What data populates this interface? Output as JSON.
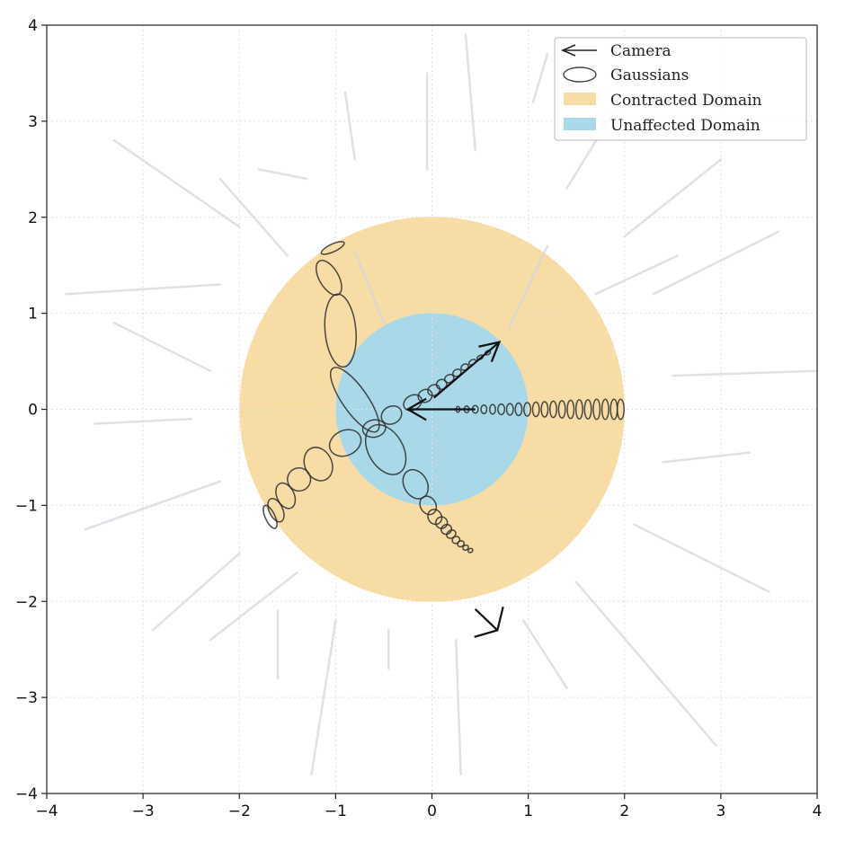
{
  "chart_data": {
    "type": "diagram",
    "xlim": [
      -4,
      4
    ],
    "ylim": [
      -4,
      4
    ],
    "xticks": [
      {
        "value": -4,
        "label": "−4"
      },
      {
        "value": -3,
        "label": "−3"
      },
      {
        "value": -2,
        "label": "−2"
      },
      {
        "value": -1,
        "label": "−1"
      },
      {
        "value": 0,
        "label": "0"
      },
      {
        "value": 1,
        "label": "1"
      },
      {
        "value": 2,
        "label": "2"
      },
      {
        "value": 3,
        "label": "3"
      },
      {
        "value": 4,
        "label": "4"
      }
    ],
    "yticks": [
      {
        "value": -4,
        "label": "−4"
      },
      {
        "value": -3,
        "label": "−3"
      },
      {
        "value": -2,
        "label": "−2"
      },
      {
        "value": -1,
        "label": "−1"
      },
      {
        "value": 0,
        "label": "0"
      },
      {
        "value": 1,
        "label": "1"
      },
      {
        "value": 2,
        "label": "2"
      },
      {
        "value": 3,
        "label": "3"
      },
      {
        "value": 4,
        "label": "4"
      }
    ],
    "grid": true,
    "legend_position": "top-right",
    "legend": [
      {
        "label": "Camera",
        "marker": "camera-arrow"
      },
      {
        "label": "Gaussians",
        "marker": "ellipse"
      },
      {
        "label": "Contracted Domain",
        "marker": "patch",
        "color": "#f8dca6"
      },
      {
        "label": "Unaffected Domain",
        "marker": "patch",
        "color": "#a9d8e8"
      }
    ],
    "regions": [
      {
        "name": "Contracted Domain",
        "shape": "circle",
        "center": [
          0,
          0
        ],
        "radius": 2,
        "color": "#f8dca6"
      },
      {
        "name": "Unaffected Domain",
        "shape": "circle",
        "center": [
          0,
          0
        ],
        "radius": 1,
        "color": "#a9d8e8"
      }
    ],
    "cameras": [
      {
        "tip": [
          -0.25,
          0.0
        ],
        "tail": [
          0.45,
          0.0
        ],
        "wing_angle_deg": 30,
        "wing_length": 0.22
      },
      {
        "tip": [
          0.7,
          0.7
        ],
        "tail": [
          0.02,
          0.12
        ],
        "wing_angle_deg": 28,
        "wing_length": 0.22
      },
      {
        "tip": [
          0.68,
          -2.3
        ],
        "tail": [
          0.45,
          -2.08
        ],
        "wing_angle_deg": 60,
        "wing_length": 0.25
      }
    ],
    "gaussian_chains": [
      {
        "name": "east",
        "ellipses": [
          {
            "cx": 0.27,
            "cy": 0.0,
            "rx": 0.02,
            "ry": 0.03,
            "angle": 0
          },
          {
            "cx": 0.36,
            "cy": 0.0,
            "rx": 0.025,
            "ry": 0.035,
            "angle": 0
          },
          {
            "cx": 0.45,
            "cy": 0.0,
            "rx": 0.03,
            "ry": 0.04,
            "angle": 0
          },
          {
            "cx": 0.54,
            "cy": 0.0,
            "rx": 0.03,
            "ry": 0.045,
            "angle": 0
          },
          {
            "cx": 0.63,
            "cy": 0.0,
            "rx": 0.03,
            "ry": 0.05,
            "angle": 0
          },
          {
            "cx": 0.72,
            "cy": 0.0,
            "rx": 0.035,
            "ry": 0.055,
            "angle": 0
          },
          {
            "cx": 0.81,
            "cy": 0.0,
            "rx": 0.035,
            "ry": 0.06,
            "angle": 0
          },
          {
            "cx": 0.9,
            "cy": 0.0,
            "rx": 0.035,
            "ry": 0.065,
            "angle": 0
          },
          {
            "cx": 0.99,
            "cy": 0.0,
            "rx": 0.035,
            "ry": 0.07,
            "angle": 0
          },
          {
            "cx": 1.08,
            "cy": 0.0,
            "rx": 0.035,
            "ry": 0.075,
            "angle": 0
          },
          {
            "cx": 1.17,
            "cy": 0.0,
            "rx": 0.035,
            "ry": 0.08,
            "angle": 0
          },
          {
            "cx": 1.26,
            "cy": 0.0,
            "rx": 0.035,
            "ry": 0.085,
            "angle": 0
          },
          {
            "cx": 1.35,
            "cy": 0.0,
            "rx": 0.035,
            "ry": 0.09,
            "angle": 0
          },
          {
            "cx": 1.44,
            "cy": 0.0,
            "rx": 0.035,
            "ry": 0.095,
            "angle": 0
          },
          {
            "cx": 1.53,
            "cy": 0.0,
            "rx": 0.035,
            "ry": 0.1,
            "angle": 0
          },
          {
            "cx": 1.62,
            "cy": 0.0,
            "rx": 0.035,
            "ry": 0.1,
            "angle": 0
          },
          {
            "cx": 1.71,
            "cy": 0.0,
            "rx": 0.035,
            "ry": 0.105,
            "angle": 0
          },
          {
            "cx": 1.8,
            "cy": 0.0,
            "rx": 0.035,
            "ry": 0.105,
            "angle": 0
          },
          {
            "cx": 1.89,
            "cy": 0.0,
            "rx": 0.035,
            "ry": 0.105,
            "angle": 0
          },
          {
            "cx": 1.96,
            "cy": 0.0,
            "rx": 0.035,
            "ry": 0.105,
            "angle": 0
          }
        ]
      },
      {
        "name": "northeast",
        "ellipses": [
          {
            "cx": 0.58,
            "cy": 0.59,
            "rx": 0.03,
            "ry": 0.02,
            "angle": 30
          },
          {
            "cx": 0.5,
            "cy": 0.54,
            "rx": 0.035,
            "ry": 0.02,
            "angle": 30
          },
          {
            "cx": 0.42,
            "cy": 0.49,
            "rx": 0.04,
            "ry": 0.025,
            "angle": 30
          },
          {
            "cx": 0.34,
            "cy": 0.44,
            "rx": 0.04,
            "ry": 0.03,
            "angle": 30
          },
          {
            "cx": 0.26,
            "cy": 0.38,
            "rx": 0.045,
            "ry": 0.035,
            "angle": 30
          },
          {
            "cx": 0.18,
            "cy": 0.32,
            "rx": 0.05,
            "ry": 0.04,
            "angle": 30
          },
          {
            "cx": 0.1,
            "cy": 0.26,
            "rx": 0.055,
            "ry": 0.05,
            "angle": 30
          },
          {
            "cx": 0.02,
            "cy": 0.2,
            "rx": 0.065,
            "ry": 0.055,
            "angle": 30
          },
          {
            "cx": -0.07,
            "cy": 0.14,
            "rx": 0.075,
            "ry": 0.065,
            "angle": 30
          },
          {
            "cx": -0.2,
            "cy": 0.07,
            "rx": 0.1,
            "ry": 0.075,
            "angle": 30
          },
          {
            "cx": -0.42,
            "cy": -0.06,
            "rx": 0.11,
            "ry": 0.09,
            "angle": 30
          },
          {
            "cx": -0.8,
            "cy": 0.1,
            "rx": 0.13,
            "ry": 0.4,
            "angle": 35
          }
        ]
      },
      {
        "name": "north",
        "ellipses": [
          {
            "cx": -0.95,
            "cy": 0.82,
            "rx": 0.16,
            "ry": 0.38,
            "angle": 5
          },
          {
            "cx": -1.07,
            "cy": 1.37,
            "rx": 0.1,
            "ry": 0.2,
            "angle": 30
          },
          {
            "cx": -1.03,
            "cy": 1.68,
            "rx": 0.13,
            "ry": 0.04,
            "angle": 25
          }
        ]
      },
      {
        "name": "southwest",
        "ellipses": [
          {
            "cx": -0.6,
            "cy": -0.2,
            "rx": 0.12,
            "ry": 0.09,
            "angle": 10
          },
          {
            "cx": -0.9,
            "cy": -0.35,
            "rx": 0.17,
            "ry": 0.13,
            "angle": 25
          },
          {
            "cx": -1.18,
            "cy": -0.57,
            "rx": 0.14,
            "ry": 0.18,
            "angle": 25
          },
          {
            "cx": -1.38,
            "cy": -0.73,
            "rx": 0.12,
            "ry": 0.12,
            "angle": 20
          },
          {
            "cx": -1.52,
            "cy": -0.9,
            "rx": 0.09,
            "ry": 0.14,
            "angle": 25
          },
          {
            "cx": -1.62,
            "cy": -1.05,
            "rx": 0.07,
            "ry": 0.13,
            "angle": 25
          },
          {
            "cx": -1.68,
            "cy": -1.12,
            "rx": 0.05,
            "ry": 0.13,
            "angle": 25
          }
        ]
      },
      {
        "name": "southeast",
        "ellipses": [
          {
            "cx": -0.48,
            "cy": -0.42,
            "rx": 0.18,
            "ry": 0.28,
            "angle": 30
          },
          {
            "cx": -0.17,
            "cy": -0.78,
            "rx": 0.12,
            "ry": 0.16,
            "angle": 30
          },
          {
            "cx": -0.04,
            "cy": -1.0,
            "rx": 0.08,
            "ry": 0.1,
            "angle": 30
          },
          {
            "cx": 0.03,
            "cy": -1.12,
            "rx": 0.07,
            "ry": 0.08,
            "angle": 30
          },
          {
            "cx": 0.1,
            "cy": -1.18,
            "rx": 0.06,
            "ry": 0.06,
            "angle": 30
          },
          {
            "cx": 0.15,
            "cy": -1.25,
            "rx": 0.055,
            "ry": 0.05,
            "angle": 30
          },
          {
            "cx": 0.2,
            "cy": -1.3,
            "rx": 0.05,
            "ry": 0.04,
            "angle": 30
          },
          {
            "cx": 0.25,
            "cy": -1.36,
            "rx": 0.04,
            "ry": 0.035,
            "angle": 30
          },
          {
            "cx": 0.3,
            "cy": -1.4,
            "rx": 0.035,
            "ry": 0.03,
            "angle": 30
          },
          {
            "cx": 0.35,
            "cy": -1.44,
            "rx": 0.03,
            "ry": 0.025,
            "angle": 30
          },
          {
            "cx": 0.4,
            "cy": -1.47,
            "rx": 0.025,
            "ry": 0.02,
            "angle": 30
          }
        ]
      }
    ],
    "vector_field": {
      "color": "#d6d6e0",
      "rays": [
        {
          "from": [
            2.5,
            0.35
          ],
          "to": [
            4.0,
            0.4
          ]
        },
        {
          "from": [
            2.3,
            1.2
          ],
          "to": [
            3.6,
            1.85
          ]
        },
        {
          "from": [
            2.0,
            1.8
          ],
          "to": [
            3.0,
            2.6
          ]
        },
        {
          "from": [
            1.4,
            2.3
          ],
          "to": [
            1.95,
            3.2
          ]
        },
        {
          "from": [
            1.05,
            3.2
          ],
          "to": [
            1.2,
            3.7
          ]
        },
        {
          "from": [
            0.45,
            2.7
          ],
          "to": [
            0.35,
            3.9
          ]
        },
        {
          "from": [
            -0.05,
            2.5
          ],
          "to": [
            -0.05,
            3.5
          ]
        },
        {
          "from": [
            -0.8,
            2.6
          ],
          "to": [
            -0.9,
            3.3
          ]
        },
        {
          "from": [
            -1.3,
            2.4
          ],
          "to": [
            -1.8,
            2.5
          ]
        },
        {
          "from": [
            -2.0,
            1.9
          ],
          "to": [
            -3.3,
            2.8
          ]
        },
        {
          "from": [
            -2.2,
            1.3
          ],
          "to": [
            -3.8,
            1.2
          ]
        },
        {
          "from": [
            -2.3,
            0.4
          ],
          "to": [
            -3.3,
            0.9
          ]
        },
        {
          "from": [
            -2.5,
            -0.1
          ],
          "to": [
            -3.5,
            -0.15
          ]
        },
        {
          "from": [
            -2.2,
            -0.75
          ],
          "to": [
            -3.6,
            -1.25
          ]
        },
        {
          "from": [
            -2.0,
            -1.5
          ],
          "to": [
            -2.9,
            -2.3
          ]
        },
        {
          "from": [
            -1.6,
            -2.1
          ],
          "to": [
            -1.6,
            -2.8
          ]
        },
        {
          "from": [
            -1.0,
            -2.2
          ],
          "to": [
            -1.25,
            -3.8
          ]
        },
        {
          "from": [
            -0.45,
            -2.3
          ],
          "to": [
            -0.45,
            -2.7
          ]
        },
        {
          "from": [
            0.25,
            -2.4
          ],
          "to": [
            0.3,
            -3.8
          ]
        },
        {
          "from": [
            0.95,
            -2.2
          ],
          "to": [
            1.4,
            -2.9
          ]
        },
        {
          "from": [
            1.5,
            -1.8
          ],
          "to": [
            2.95,
            -3.5
          ]
        },
        {
          "from": [
            2.1,
            -1.2
          ],
          "to": [
            3.5,
            -1.9
          ]
        },
        {
          "from": [
            2.4,
            -0.55
          ],
          "to": [
            3.3,
            -0.45
          ]
        },
        {
          "from": [
            1.7,
            1.2
          ],
          "to": [
            2.55,
            1.6
          ]
        },
        {
          "from": [
            -1.5,
            1.6
          ],
          "to": [
            -2.2,
            2.4
          ]
        },
        {
          "from": [
            -1.4,
            -1.7
          ],
          "to": [
            -2.3,
            -2.4
          ]
        },
        {
          "from": [
            0.8,
            0.85
          ],
          "to": [
            1.2,
            1.7
          ]
        },
        {
          "from": [
            -0.5,
            0.9
          ],
          "to": [
            -0.8,
            1.65
          ]
        }
      ]
    }
  }
}
